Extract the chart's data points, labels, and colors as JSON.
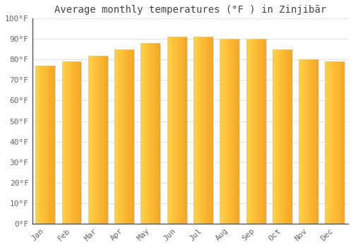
{
  "title": "Average monthly temperatures (°F ) in Zinjibār",
  "months": [
    "Jan",
    "Feb",
    "Mar",
    "Apr",
    "May",
    "Jun",
    "Jul",
    "Aug",
    "Sep",
    "Oct",
    "Nov",
    "Dec"
  ],
  "values": [
    77,
    79,
    82,
    85,
    88,
    91,
    91,
    90,
    90,
    85,
    80,
    79
  ],
  "bar_color_left": "#FFD045",
  "bar_color_right": "#F5A623",
  "background_color": "#FFFFFF",
  "grid_color": "#E0E0E0",
  "ylim": [
    0,
    100
  ],
  "yticks": [
    0,
    10,
    20,
    30,
    40,
    50,
    60,
    70,
    80,
    90,
    100
  ],
  "ytick_labels": [
    "0°F",
    "10°F",
    "20°F",
    "30°F",
    "40°F",
    "50°F",
    "60°F",
    "70°F",
    "80°F",
    "90°F",
    "100°F"
  ],
  "title_fontsize": 10,
  "tick_fontsize": 8,
  "font_family": "monospace",
  "bar_width": 0.75,
  "spine_color": "#555555",
  "tick_label_color": "#666666"
}
